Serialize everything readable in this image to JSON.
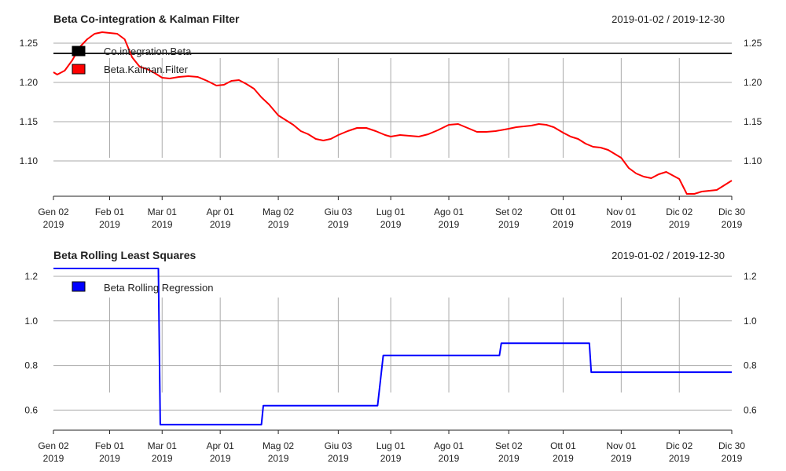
{
  "colors": {
    "beta_cointegration": "#000000",
    "kalman": "#ff0000",
    "rolling": "#0000ff",
    "grid": "#aaaaaa"
  },
  "chart_data": [
    {
      "type": "line",
      "title": "Beta Co-integration & Kalman Filter",
      "date_range": "2019-01-02 / 2019-12-30",
      "x_tick_labels": [
        {
          "date": "2019-01-02",
          "label": "Gen 02",
          "year": "2019"
        },
        {
          "date": "2019-02-01",
          "label": "Feb 01",
          "year": "2019"
        },
        {
          "date": "2019-03-01",
          "label": "Mar 01",
          "year": "2019"
        },
        {
          "date": "2019-04-01",
          "label": "Apr 01",
          "year": "2019"
        },
        {
          "date": "2019-05-02",
          "label": "Mag 02",
          "year": "2019"
        },
        {
          "date": "2019-06-03",
          "label": "Giu 03",
          "year": "2019"
        },
        {
          "date": "2019-07-01",
          "label": "Lug 01",
          "year": "2019"
        },
        {
          "date": "2019-08-01",
          "label": "Ago 01",
          "year": "2019"
        },
        {
          "date": "2019-09-02",
          "label": "Set 02",
          "year": "2019"
        },
        {
          "date": "2019-10-01",
          "label": "Ott 01",
          "year": "2019"
        },
        {
          "date": "2019-11-01",
          "label": "Nov 01",
          "year": "2019"
        },
        {
          "date": "2019-12-02",
          "label": "Dic 02",
          "year": "2019"
        },
        {
          "date": "2019-12-30",
          "label": "Dic 30",
          "year": "2019"
        }
      ],
      "y_ticks": [
        "1.10",
        "1.15",
        "1.20",
        "1.25"
      ],
      "ylim": [
        1.055,
        1.265
      ],
      "grid": true,
      "legend_position": "top-left",
      "series": [
        {
          "name": "Co.integration.Beta",
          "color": "#000000",
          "style": "line",
          "x": [
            "2019-01-02",
            "2019-12-30"
          ],
          "y": [
            1.237,
            1.237
          ]
        },
        {
          "name": "Beta.Kalman.Filter",
          "color": "#ff0000",
          "style": "line",
          "x": [
            "2019-01-02",
            "2019-01-04",
            "2019-01-08",
            "2019-01-12",
            "2019-01-16",
            "2019-01-20",
            "2019-01-24",
            "2019-01-28",
            "2019-02-01",
            "2019-02-05",
            "2019-02-09",
            "2019-02-13",
            "2019-02-17",
            "2019-02-21",
            "2019-02-25",
            "2019-03-01",
            "2019-03-05",
            "2019-03-10",
            "2019-03-15",
            "2019-03-20",
            "2019-03-25",
            "2019-03-30",
            "2019-04-03",
            "2019-04-07",
            "2019-04-11",
            "2019-04-15",
            "2019-04-19",
            "2019-04-23",
            "2019-04-27",
            "2019-05-02",
            "2019-05-06",
            "2019-05-10",
            "2019-05-14",
            "2019-05-18",
            "2019-05-22",
            "2019-05-26",
            "2019-05-30",
            "2019-06-03",
            "2019-06-08",
            "2019-06-13",
            "2019-06-18",
            "2019-06-23",
            "2019-06-28",
            "2019-07-01",
            "2019-07-06",
            "2019-07-11",
            "2019-07-16",
            "2019-07-21",
            "2019-07-26",
            "2019-08-01",
            "2019-08-06",
            "2019-08-11",
            "2019-08-16",
            "2019-08-21",
            "2019-08-26",
            "2019-09-02",
            "2019-09-06",
            "2019-09-10",
            "2019-09-14",
            "2019-09-18",
            "2019-09-22",
            "2019-09-26",
            "2019-10-01",
            "2019-10-05",
            "2019-10-09",
            "2019-10-13",
            "2019-10-17",
            "2019-10-21",
            "2019-10-25",
            "2019-11-01",
            "2019-11-05",
            "2019-11-09",
            "2019-11-13",
            "2019-11-17",
            "2019-11-21",
            "2019-11-25",
            "2019-12-02",
            "2019-12-06",
            "2019-12-10",
            "2019-12-14",
            "2019-12-18",
            "2019-12-22",
            "2019-12-26",
            "2019-12-30"
          ],
          "y": [
            1.213,
            1.21,
            1.215,
            1.228,
            1.245,
            1.255,
            1.262,
            1.264,
            1.263,
            1.262,
            1.255,
            1.232,
            1.22,
            1.217,
            1.212,
            1.206,
            1.205,
            1.207,
            1.208,
            1.207,
            1.202,
            1.196,
            1.197,
            1.202,
            1.203,
            1.198,
            1.192,
            1.181,
            1.172,
            1.158,
            1.152,
            1.146,
            1.138,
            1.134,
            1.128,
            1.126,
            1.128,
            1.133,
            1.138,
            1.142,
            1.142,
            1.138,
            1.133,
            1.131,
            1.133,
            1.132,
            1.131,
            1.134,
            1.139,
            1.146,
            1.147,
            1.142,
            1.137,
            1.137,
            1.138,
            1.141,
            1.143,
            1.144,
            1.145,
            1.147,
            1.146,
            1.143,
            1.136,
            1.131,
            1.128,
            1.122,
            1.118,
            1.117,
            1.114,
            1.104,
            1.091,
            1.084,
            1.08,
            1.078,
            1.083,
            1.086,
            1.077,
            1.058,
            1.058,
            1.061,
            1.062,
            1.063,
            1.069,
            1.075
          ]
        }
      ]
    },
    {
      "type": "line",
      "title": "Beta Rolling Least Squares",
      "date_range": "2019-01-02 / 2019-12-30",
      "x_tick_labels": [
        {
          "date": "2019-01-02",
          "label": "Gen 02",
          "year": "2019"
        },
        {
          "date": "2019-02-01",
          "label": "Feb 01",
          "year": "2019"
        },
        {
          "date": "2019-03-01",
          "label": "Mar 01",
          "year": "2019"
        },
        {
          "date": "2019-04-01",
          "label": "Apr 01",
          "year": "2019"
        },
        {
          "date": "2019-05-02",
          "label": "Mag 02",
          "year": "2019"
        },
        {
          "date": "2019-06-03",
          "label": "Giu 03",
          "year": "2019"
        },
        {
          "date": "2019-07-01",
          "label": "Lug 01",
          "year": "2019"
        },
        {
          "date": "2019-08-01",
          "label": "Ago 01",
          "year": "2019"
        },
        {
          "date": "2019-09-02",
          "label": "Set 02",
          "year": "2019"
        },
        {
          "date": "2019-10-01",
          "label": "Ott 01",
          "year": "2019"
        },
        {
          "date": "2019-11-01",
          "label": "Nov 01",
          "year": "2019"
        },
        {
          "date": "2019-12-02",
          "label": "Dic 02",
          "year": "2019"
        },
        {
          "date": "2019-12-30",
          "label": "Dic 30",
          "year": "2019"
        }
      ],
      "y_ticks": [
        "0.6",
        "0.8",
        "1.0",
        "1.2"
      ],
      "ylim": [
        0.51,
        1.235
      ],
      "grid": true,
      "legend_position": "top-left",
      "series": [
        {
          "name": "Beta Rolling Regression",
          "color": "#0000ff",
          "style": "step",
          "x": [
            "2019-01-02",
            "2019-02-27",
            "2019-02-28",
            "2019-04-23",
            "2019-04-24",
            "2019-06-24",
            "2019-06-27",
            "2019-08-28",
            "2019-08-29",
            "2019-10-15",
            "2019-10-16",
            "2019-12-30"
          ],
          "y": [
            1.235,
            1.235,
            0.535,
            0.535,
            0.62,
            0.62,
            0.845,
            0.845,
            0.9,
            0.9,
            0.77,
            0.77
          ]
        }
      ]
    }
  ]
}
